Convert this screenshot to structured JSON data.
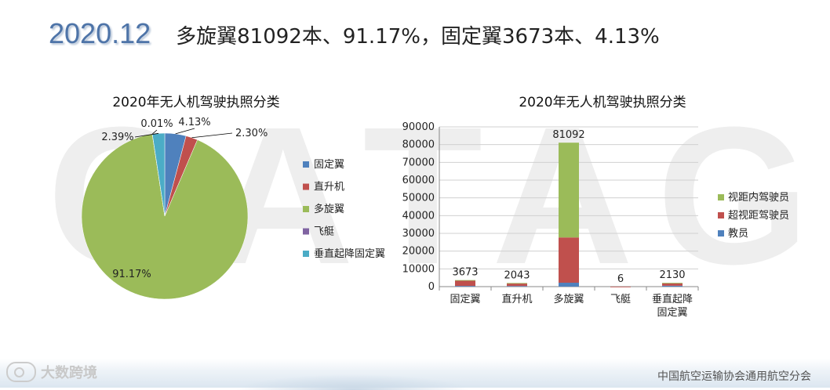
{
  "header": {
    "year": "2020.12",
    "headline": "多旋翼81092本、91.17%，固定翼3673本、4.13%"
  },
  "watermark": "CATAG",
  "footer": {
    "brand": "大数跨境",
    "org": "中国航空运输协会通用航空分会"
  },
  "colors": {
    "blue": "#4f81bd",
    "red": "#c0504d",
    "green": "#9bbb59",
    "purple": "#8064a2",
    "teal": "#4bacc6",
    "title_blue": "#4e74a8"
  },
  "chart_data": [
    {
      "type": "pie",
      "title": "2020年无人机驾驶执照分类",
      "categories": [
        "固定翼",
        "直升机",
        "多旋翼",
        "飞艇",
        "垂直起降固定翼"
      ],
      "values": [
        4.13,
        2.3,
        91.17,
        0.01,
        2.39
      ],
      "value_labels": [
        "4.13%",
        "2.30%",
        "91.17%",
        "0.01%",
        "2.39%"
      ],
      "series_colors": [
        "#4f81bd",
        "#c0504d",
        "#9bbb59",
        "#8064a2",
        "#4bacc6"
      ],
      "legend_position": "right"
    },
    {
      "type": "bar",
      "stacked": true,
      "title": "2020年无人机驾驶执照分类",
      "categories": [
        "固定翼",
        "直升机",
        "多旋翼",
        "飞艇",
        "垂直起降固定翼"
      ],
      "category_lines": [
        [
          "固定翼"
        ],
        [
          "直升机"
        ],
        [
          "多旋翼"
        ],
        [
          "飞艇"
        ],
        [
          "垂直起降",
          "固定翼"
        ]
      ],
      "series": [
        {
          "name": "教员",
          "color": "#4f81bd",
          "values": [
            400,
            350,
            2200,
            0,
            500
          ]
        },
        {
          "name": "超视距驾驶员",
          "color": "#c0504d",
          "values": [
            3073,
            1393,
            25500,
            6,
            1330
          ]
        },
        {
          "name": "视距内驾驶员",
          "color": "#9bbb59",
          "values": [
            200,
            300,
            53392,
            0,
            300
          ]
        }
      ],
      "totals": [
        3673,
        2043,
        81092,
        6,
        2130
      ],
      "ylim": [
        0,
        90000
      ],
      "yticks": [
        0,
        10000,
        20000,
        30000,
        40000,
        50000,
        60000,
        70000,
        80000,
        90000
      ],
      "grid": true,
      "legend_position": "right"
    }
  ]
}
